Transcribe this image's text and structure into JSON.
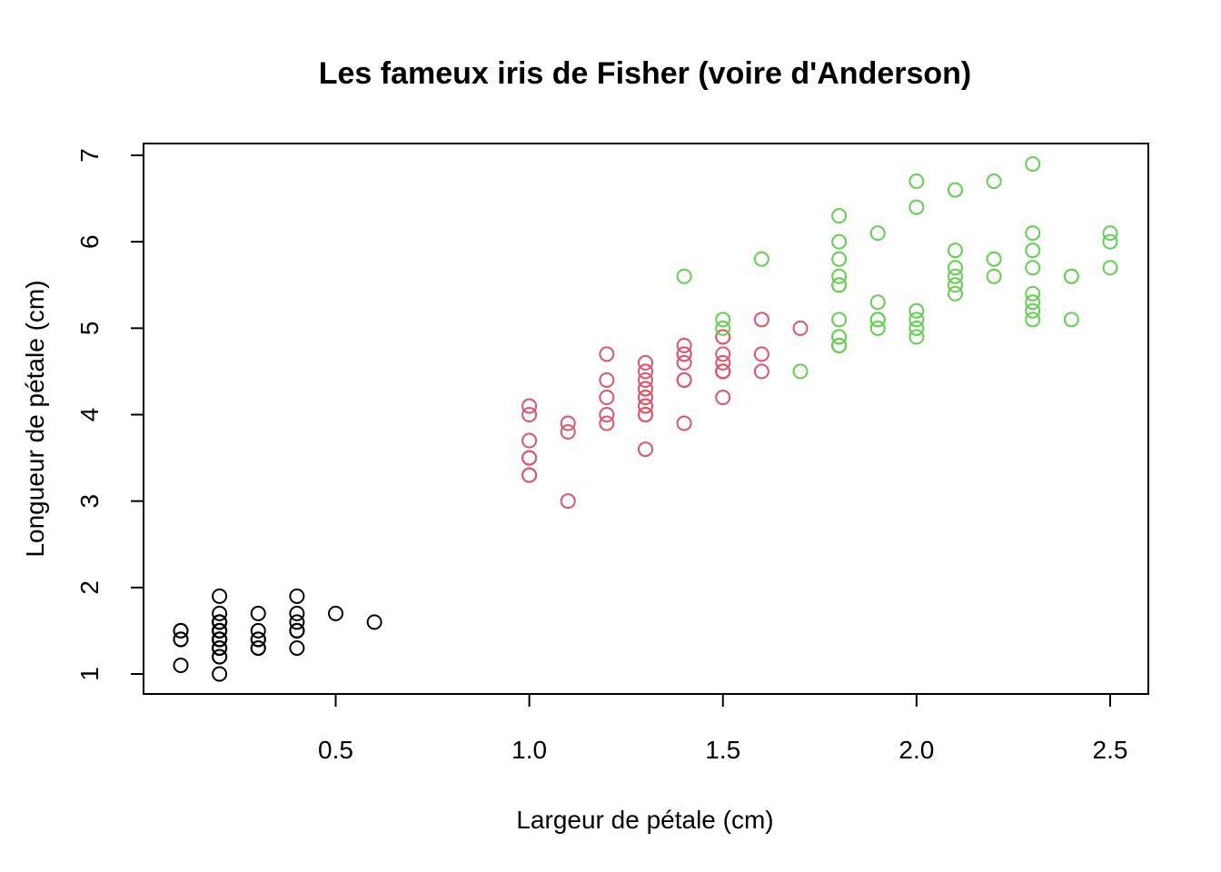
{
  "chart_data": {
    "type": "scatter",
    "title": "Les fameux iris de Fisher (voire d'Anderson)",
    "xlabel": "Largeur de pétale (cm)",
    "ylabel": "Longueur de pétale (cm)",
    "xlim": [
      0.1,
      2.5
    ],
    "ylim": [
      1,
      7
    ],
    "xticks": [
      "0.5",
      "1.0",
      "1.5",
      "2.0",
      "2.5"
    ],
    "yticks": [
      "1",
      "2",
      "3",
      "4",
      "5",
      "6",
      "7"
    ],
    "marker": "open-circle",
    "grid": false,
    "legend": false,
    "series": [
      {
        "color": "#000000",
        "points": [
          [
            0.2,
            1.4
          ],
          [
            0.2,
            1.4
          ],
          [
            0.2,
            1.3
          ],
          [
            0.2,
            1.5
          ],
          [
            0.2,
            1.4
          ],
          [
            0.4,
            1.7
          ],
          [
            0.3,
            1.4
          ],
          [
            0.2,
            1.5
          ],
          [
            0.2,
            1.4
          ],
          [
            0.1,
            1.5
          ],
          [
            0.2,
            1.5
          ],
          [
            0.2,
            1.6
          ],
          [
            0.1,
            1.4
          ],
          [
            0.1,
            1.1
          ],
          [
            0.2,
            1.2
          ],
          [
            0.4,
            1.5
          ],
          [
            0.4,
            1.3
          ],
          [
            0.3,
            1.4
          ],
          [
            0.3,
            1.7
          ],
          [
            0.3,
            1.5
          ],
          [
            0.2,
            1.7
          ],
          [
            0.4,
            1.5
          ],
          [
            0.2,
            1.0
          ],
          [
            0.5,
            1.7
          ],
          [
            0.2,
            1.9
          ],
          [
            0.2,
            1.6
          ],
          [
            0.4,
            1.6
          ],
          [
            0.2,
            1.5
          ],
          [
            0.2,
            1.4
          ],
          [
            0.2,
            1.6
          ],
          [
            0.2,
            1.6
          ],
          [
            0.4,
            1.5
          ],
          [
            0.1,
            1.5
          ],
          [
            0.2,
            1.4
          ],
          [
            0.2,
            1.5
          ],
          [
            0.2,
            1.2
          ],
          [
            0.2,
            1.3
          ],
          [
            0.1,
            1.4
          ],
          [
            0.2,
            1.3
          ],
          [
            0.2,
            1.5
          ],
          [
            0.3,
            1.3
          ],
          [
            0.3,
            1.3
          ],
          [
            0.2,
            1.3
          ],
          [
            0.6,
            1.6
          ],
          [
            0.4,
            1.9
          ],
          [
            0.3,
            1.4
          ],
          [
            0.2,
            1.6
          ],
          [
            0.2,
            1.4
          ],
          [
            0.2,
            1.5
          ],
          [
            0.2,
            1.4
          ]
        ]
      },
      {
        "color": "#DF536B",
        "points": [
          [
            1.4,
            4.7
          ],
          [
            1.5,
            4.5
          ],
          [
            1.5,
            4.9
          ],
          [
            1.3,
            4.0
          ],
          [
            1.5,
            4.6
          ],
          [
            1.3,
            4.5
          ],
          [
            1.6,
            4.7
          ],
          [
            1.0,
            3.3
          ],
          [
            1.3,
            4.6
          ],
          [
            1.4,
            3.9
          ],
          [
            1.0,
            3.5
          ],
          [
            1.5,
            4.2
          ],
          [
            1.0,
            4.0
          ],
          [
            1.4,
            4.7
          ],
          [
            1.3,
            3.6
          ],
          [
            1.4,
            4.4
          ],
          [
            1.5,
            4.5
          ],
          [
            1.0,
            4.1
          ],
          [
            1.5,
            4.5
          ],
          [
            1.1,
            3.9
          ],
          [
            1.8,
            4.8
          ],
          [
            1.3,
            4.0
          ],
          [
            1.5,
            4.9
          ],
          [
            1.2,
            4.7
          ],
          [
            1.3,
            4.3
          ],
          [
            1.4,
            4.4
          ],
          [
            1.4,
            4.8
          ],
          [
            1.7,
            5.0
          ],
          [
            1.5,
            4.5
          ],
          [
            1.0,
            3.5
          ],
          [
            1.1,
            3.8
          ],
          [
            1.0,
            3.7
          ],
          [
            1.2,
            3.9
          ],
          [
            1.6,
            5.1
          ],
          [
            1.5,
            4.5
          ],
          [
            1.6,
            4.5
          ],
          [
            1.5,
            4.7
          ],
          [
            1.3,
            4.4
          ],
          [
            1.3,
            4.1
          ],
          [
            1.3,
            4.0
          ],
          [
            1.2,
            4.4
          ],
          [
            1.4,
            4.6
          ],
          [
            1.2,
            4.0
          ],
          [
            1.0,
            3.3
          ],
          [
            1.3,
            4.2
          ],
          [
            1.2,
            4.2
          ],
          [
            1.3,
            4.2
          ],
          [
            1.3,
            4.3
          ],
          [
            1.1,
            3.0
          ],
          [
            1.3,
            4.1
          ]
        ]
      },
      {
        "color": "#61D04F",
        "points": [
          [
            2.5,
            6.0
          ],
          [
            1.9,
            5.1
          ],
          [
            2.1,
            5.9
          ],
          [
            1.8,
            5.6
          ],
          [
            2.2,
            5.8
          ],
          [
            2.1,
            6.6
          ],
          [
            1.7,
            4.5
          ],
          [
            1.8,
            6.3
          ],
          [
            1.8,
            5.8
          ],
          [
            2.5,
            6.1
          ],
          [
            2.0,
            5.1
          ],
          [
            1.9,
            5.3
          ],
          [
            2.1,
            5.5
          ],
          [
            2.0,
            5.0
          ],
          [
            2.4,
            5.1
          ],
          [
            2.3,
            5.3
          ],
          [
            1.8,
            5.5
          ],
          [
            2.2,
            6.7
          ],
          [
            2.3,
            6.9
          ],
          [
            1.5,
            5.0
          ],
          [
            2.3,
            5.7
          ],
          [
            2.0,
            4.9
          ],
          [
            2.0,
            6.7
          ],
          [
            1.8,
            4.9
          ],
          [
            2.1,
            5.7
          ],
          [
            1.8,
            6.0
          ],
          [
            1.8,
            4.8
          ],
          [
            1.8,
            4.9
          ],
          [
            2.1,
            5.6
          ],
          [
            1.6,
            5.8
          ],
          [
            1.9,
            6.1
          ],
          [
            2.0,
            6.4
          ],
          [
            2.2,
            5.6
          ],
          [
            1.5,
            5.1
          ],
          [
            1.4,
            5.6
          ],
          [
            2.3,
            6.1
          ],
          [
            2.4,
            5.6
          ],
          [
            1.8,
            5.5
          ],
          [
            1.8,
            4.8
          ],
          [
            2.1,
            5.4
          ],
          [
            2.4,
            5.6
          ],
          [
            2.3,
            5.1
          ],
          [
            1.9,
            5.1
          ],
          [
            2.3,
            5.9
          ],
          [
            2.5,
            5.7
          ],
          [
            2.3,
            5.2
          ],
          [
            1.9,
            5.0
          ],
          [
            2.0,
            5.2
          ],
          [
            2.3,
            5.4
          ],
          [
            1.8,
            5.1
          ]
        ]
      }
    ]
  }
}
